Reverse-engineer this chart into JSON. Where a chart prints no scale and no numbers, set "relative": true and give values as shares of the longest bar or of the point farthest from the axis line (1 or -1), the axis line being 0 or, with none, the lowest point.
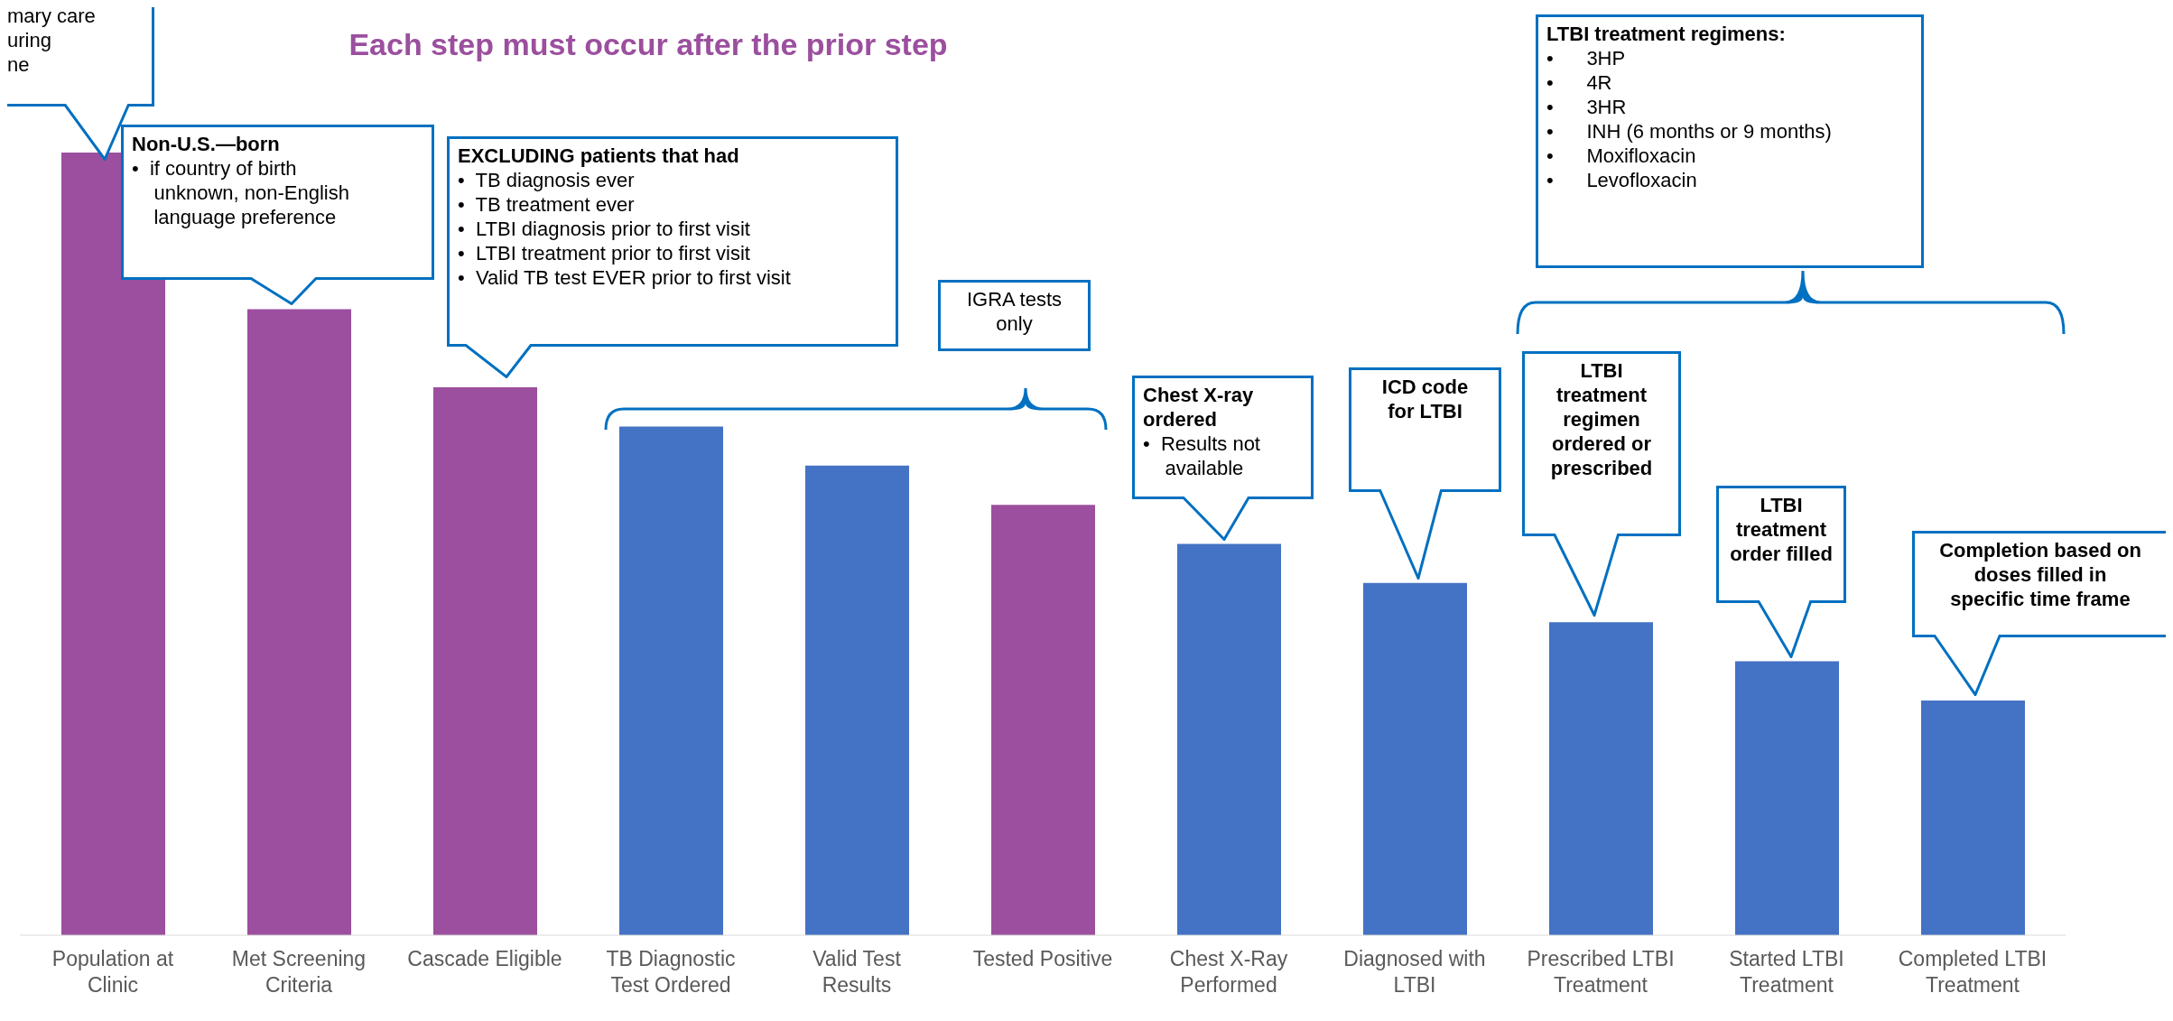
{
  "chart_data": {
    "type": "bar",
    "relative": true,
    "title": "Each step must occur after the prior step",
    "categories": [
      "Population at Clinic",
      "Met Screening Criteria",
      "Cascade Eligible",
      "TB Diagnostic Test Ordered",
      "Valid Test Results",
      "Tested Positive",
      "Chest X-Ray Performed",
      "Diagnosed with LTBI",
      "Prescribed LTBI Treatment",
      "Started LTBI Treatment",
      "Completed LTBI Treatment"
    ],
    "values": [
      1,
      0.8,
      0.7,
      0.65,
      0.6,
      0.55,
      0.5,
      0.45,
      0.4,
      0.35,
      0.3
    ],
    "colors": [
      "#9b4f9e",
      "#9b4f9e",
      "#9b4f9e",
      "#4472c4",
      "#4472c4",
      "#9b4f9e",
      "#4472c4",
      "#4472c4",
      "#4472c4",
      "#4472c4",
      "#4472c4"
    ],
    "annotations": [
      "mary care\nuring\nne",
      "Non-U.S.—born\n•  if country of birth\n    unknown, non-English\n    language preference",
      "EXCLUDING patients that had\n•  TB diagnosis ever\n•  TB treatment ever\n•  LTBI diagnosis prior to first visit\n•  LTBI treatment prior to first visit\n•  Valid TB test EVER prior to first visit",
      "IGRA tests\nonly",
      "Chest X-ray\nordered\n•  Results not\n    available",
      "ICD code\nfor LTBI",
      "LTBI\ntreatment\nregimen\nordered or\nprescribed",
      "LTBI\ntreatment\norder filled",
      "Completion based on\ndoses filled in\nspecific time frame",
      "LTBI treatment regimens:\n•      3HP\n•      4R\n•      3HR\n•      INH (6 months or 9 months)\n•      Moxifloxacin\n•      Levofloxacin"
    ]
  }
}
